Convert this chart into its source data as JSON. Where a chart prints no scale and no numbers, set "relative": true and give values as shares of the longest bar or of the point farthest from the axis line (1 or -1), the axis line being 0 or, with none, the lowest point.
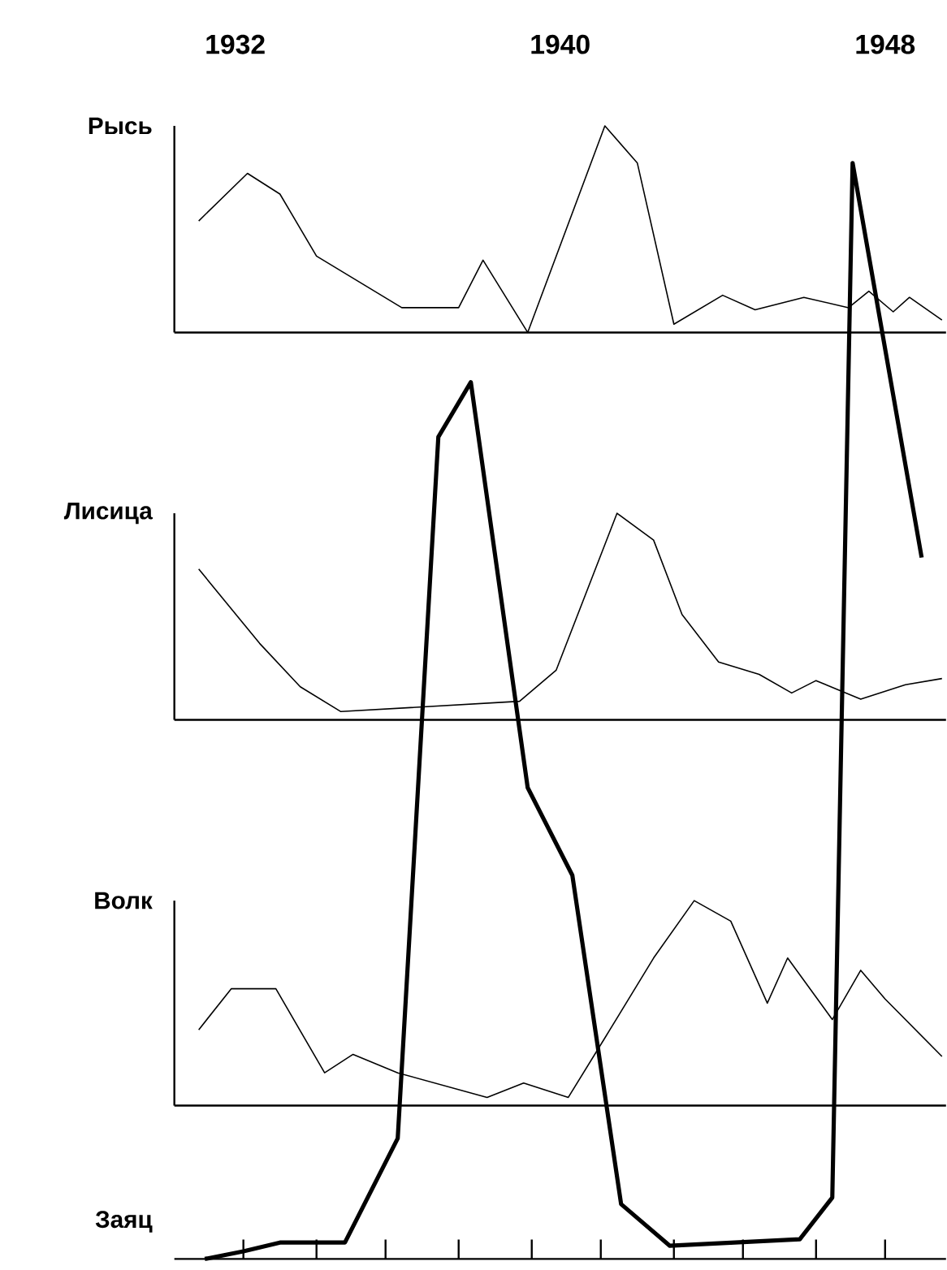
{
  "chart_data": [
    {
      "type": "line",
      "relative": true,
      "ylabel": "Рысь",
      "xlim": [
        1930.5,
        1949.5
      ],
      "xticks": [
        1932,
        1940,
        1948
      ],
      "tick_labels": "x",
      "series": [
        {
          "color": "#000000",
          "x": [
            1931.1,
            1932.3,
            1933.1,
            1934.0,
            1936.1,
            1937.5,
            1938.1,
            1939.2,
            1941.1,
            1941.9,
            1942.8,
            1944.0,
            1944.8,
            1946.0,
            1947.1,
            1947.6,
            1948.2,
            1948.6,
            1949.4
          ],
          "values": [
            0.54,
            0.77,
            0.67,
            0.37,
            0.12,
            0.12,
            0.35,
            0,
            1,
            0.82,
            0.04,
            0.18,
            0.11,
            0.17,
            0.12,
            0.2,
            0.1,
            0.17,
            0.06
          ]
        }
      ]
    },
    {
      "type": "line",
      "relative": true,
      "ylabel": "Лисица",
      "xlim": [
        1930.5,
        1949.5
      ],
      "tick_labels": false,
      "series": [
        {
          "color": "#000000",
          "x": [
            1931.1,
            1932.6,
            1933.6,
            1934.6,
            1939.0,
            1939.9,
            1941.4,
            1942.3,
            1943.0,
            1943.9,
            1944.9,
            1945.7,
            1946.3,
            1947.4,
            1948.5,
            1949.4
          ],
          "values": [
            0.73,
            0.37,
            0.16,
            0.04,
            0.09,
            0.24,
            1,
            0.87,
            0.51,
            0.28,
            0.22,
            0.13,
            0.19,
            0.1,
            0.17,
            0.2
          ]
        }
      ]
    },
    {
      "type": "line",
      "relative": true,
      "ylabel": "Волк",
      "xlim": [
        1930.5,
        1949.5
      ],
      "tick_labels": false,
      "series": [
        {
          "color": "#000000",
          "x": [
            1931.1,
            1931.9,
            1933.0,
            1934.2,
            1934.9,
            1936.0,
            1938.2,
            1939.1,
            1940.2,
            1941.1,
            1942.3,
            1943.3,
            1944.2,
            1945.1,
            1945.6,
            1946.7,
            1947.4,
            1948.0,
            1949.4
          ],
          "values": [
            0.37,
            0.57,
            0.57,
            0.16,
            0.25,
            0.16,
            0.04,
            0.11,
            0.04,
            0.33,
            0.72,
            1,
            0.9,
            0.5,
            0.72,
            0.42,
            0.66,
            0.52,
            0.24
          ]
        }
      ]
    },
    {
      "type": "line",
      "relative": true,
      "ylabel": "Заяц",
      "xlim": [
        1930.5,
        1949.5
      ],
      "tick_labels": false,
      "xticks": [
        {
          "value": 1932.2,
          "label": null
        },
        {
          "value": 1934.0,
          "label": null
        },
        {
          "value": 1935.7,
          "label": null
        },
        {
          "value": 1937.5,
          "label": null
        },
        {
          "value": 1939.3,
          "label": null
        },
        {
          "value": 1941.0,
          "label": null
        },
        {
          "value": 1942.8,
          "label": null
        },
        {
          "value": 1944.5,
          "label": null
        },
        {
          "value": 1946.3,
          "label": null
        },
        {
          "value": 1948.0,
          "label": null
        }
      ],
      "series": [
        {
          "color": "#000000",
          "x": [
            1931.25,
            1932.2,
            1933.1,
            1934.7,
            1936.0,
            1937.0,
            1937.8,
            1939.2,
            1940.3,
            1941.5,
            1942.7,
            1945.9,
            1946.7,
            1947.2,
            1948.9
          ],
          "values": [
            0,
            0.007,
            0.015,
            0.015,
            0.11,
            0.75,
            0.8,
            0.43,
            0.35,
            0.05,
            0.012,
            0.018,
            0.056,
            1,
            0.64
          ]
        }
      ]
    }
  ]
}
